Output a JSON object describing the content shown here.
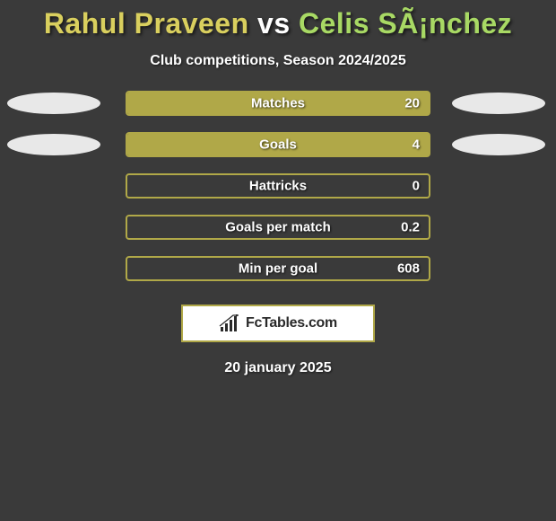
{
  "title": {
    "player1": "Rahul Praveen",
    "vs": "vs",
    "player2": "Celis SÃ¡nchez",
    "player1_color": "#d9cf5e",
    "vs_color": "#ffffff",
    "player2_color": "#a8d964"
  },
  "subtitle": "Club competitions, Season 2024/2025",
  "stats": [
    {
      "label": "Matches",
      "value": "20",
      "fill_pct": 100,
      "show_left_ellipse": true,
      "show_right_ellipse": true
    },
    {
      "label": "Goals",
      "value": "4",
      "fill_pct": 100,
      "show_left_ellipse": true,
      "show_right_ellipse": true
    },
    {
      "label": "Hattricks",
      "value": "0",
      "fill_pct": 0,
      "show_left_ellipse": false,
      "show_right_ellipse": false
    },
    {
      "label": "Goals per match",
      "value": "0.2",
      "fill_pct": 0,
      "show_left_ellipse": false,
      "show_right_ellipse": false
    },
    {
      "label": "Min per goal",
      "value": "608",
      "fill_pct": 0,
      "show_left_ellipse": false,
      "show_right_ellipse": false
    }
  ],
  "bar_style": {
    "border_color": "#b0a848",
    "fill_color": "#b0a848",
    "track_color": "transparent"
  },
  "ellipse_color": "#e8e8e8",
  "logo": {
    "prefix": "Fc",
    "suffix": "Tables.com"
  },
  "date": "20 january 2025",
  "background_color": "#3a3a3a"
}
